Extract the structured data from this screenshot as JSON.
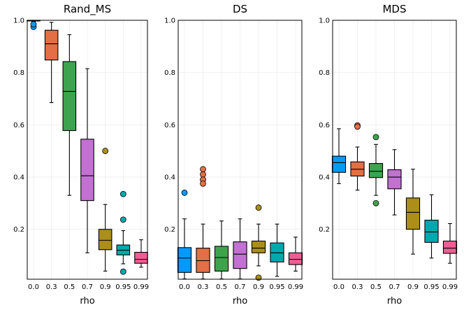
{
  "chart_data": [
    {
      "type": "box",
      "title": "Rand_MS",
      "xlabel": "rho",
      "ylabel": "",
      "ylim": [
        0.0,
        1.0
      ],
      "yticks": [
        "0.2",
        "0.4",
        "0.6",
        "0.8",
        "1.0"
      ],
      "categories": [
        "0.0",
        "0.3",
        "0.5",
        "0.7",
        "0.9",
        "0.95",
        "0.99"
      ],
      "boxes": [
        {
          "category": "0.0",
          "color": "#009af9",
          "whisker_low": 0.995,
          "q1": 0.998,
          "median": 0.999,
          "q3": 1.0,
          "whisker_high": 1.0,
          "outliers": [
            0.975,
            0.985
          ]
        },
        {
          "category": "0.3",
          "color": "#e26f46",
          "whisker_low": 0.685,
          "q1": 0.848,
          "median": 0.91,
          "q3": 0.962,
          "whisker_high": 0.992,
          "outliers": []
        },
        {
          "category": "0.5",
          "color": "#3da44d",
          "whisker_low": 0.33,
          "q1": 0.578,
          "median": 0.728,
          "q3": 0.842,
          "whisker_high": 0.945,
          "outliers": []
        },
        {
          "category": "0.7",
          "color": "#c271d2",
          "whisker_low": 0.11,
          "q1": 0.31,
          "median": 0.405,
          "q3": 0.545,
          "whisker_high": 0.815,
          "outliers": []
        },
        {
          "category": "0.9",
          "color": "#ac8e18",
          "whisker_low": 0.04,
          "q1": 0.122,
          "median": 0.158,
          "q3": 0.2,
          "whisker_high": 0.295,
          "outliers": [
            0.5
          ]
        },
        {
          "category": "0.95",
          "color": "#00a9ad",
          "whisker_low": 0.068,
          "q1": 0.102,
          "median": 0.12,
          "q3": 0.14,
          "whisker_high": 0.195,
          "outliers": [
            0.335,
            0.237,
            0.038
          ]
        },
        {
          "category": "0.99",
          "color": "#ed5e93",
          "whisker_low": 0.055,
          "q1": 0.07,
          "median": 0.085,
          "q3": 0.112,
          "whisker_high": 0.16,
          "outliers": []
        }
      ]
    },
    {
      "type": "box",
      "title": "DS",
      "xlabel": "rho",
      "ylabel": "",
      "ylim": [
        0.0,
        1.0
      ],
      "yticks": [
        "0.2",
        "0.4",
        "0.6",
        "0.8",
        "1.0"
      ],
      "categories": [
        "0.0",
        "0.3",
        "0.5",
        "0.7",
        "0.9",
        "0.95",
        "0.99"
      ],
      "boxes": [
        {
          "category": "0.0",
          "color": "#009af9",
          "whisker_low": 0.01,
          "q1": 0.035,
          "median": 0.09,
          "q3": 0.13,
          "whisker_high": 0.24,
          "outliers": [
            0.34
          ]
        },
        {
          "category": "0.3",
          "color": "#e26f46",
          "whisker_low": 0.01,
          "q1": 0.035,
          "median": 0.08,
          "q3": 0.128,
          "whisker_high": 0.22,
          "outliers": [
            0.43,
            0.41,
            0.39,
            0.375
          ]
        },
        {
          "category": "0.5",
          "color": "#3da44d",
          "whisker_low": 0.01,
          "q1": 0.04,
          "median": 0.092,
          "q3": 0.135,
          "whisker_high": 0.232,
          "outliers": []
        },
        {
          "category": "0.7",
          "color": "#c271d2",
          "whisker_low": 0.01,
          "q1": 0.05,
          "median": 0.105,
          "q3": 0.152,
          "whisker_high": 0.24,
          "outliers": []
        },
        {
          "category": "0.9",
          "color": "#ac8e18",
          "whisker_low": 0.06,
          "q1": 0.11,
          "median": 0.128,
          "q3": 0.155,
          "whisker_high": 0.22,
          "outliers": [
            0.283,
            0.015
          ]
        },
        {
          "category": "0.95",
          "color": "#00a9ad",
          "whisker_low": 0.02,
          "q1": 0.075,
          "median": 0.11,
          "q3": 0.148,
          "whisker_high": 0.22,
          "outliers": []
        },
        {
          "category": "0.99",
          "color": "#ed5e93",
          "whisker_low": 0.04,
          "q1": 0.065,
          "median": 0.085,
          "q3": 0.11,
          "whisker_high": 0.17,
          "outliers": []
        }
      ]
    },
    {
      "type": "box",
      "title": "MDS",
      "xlabel": "rho",
      "ylabel": "",
      "ylim": [
        0.0,
        1.0
      ],
      "yticks": [
        "0.2",
        "0.4",
        "0.6",
        "0.8",
        "1.0"
      ],
      "categories": [
        "0.0",
        "0.3",
        "0.5",
        "0.7",
        "0.9",
        "0.95",
        "0.99"
      ],
      "boxes": [
        {
          "category": "0.0",
          "color": "#009af9",
          "whisker_low": 0.375,
          "q1": 0.418,
          "median": 0.455,
          "q3": 0.48,
          "whisker_high": 0.585,
          "outliers": []
        },
        {
          "category": "0.3",
          "color": "#e26f46",
          "whisker_low": 0.35,
          "q1": 0.404,
          "median": 0.43,
          "q3": 0.458,
          "whisker_high": 0.515,
          "outliers": [
            0.598,
            0.593
          ]
        },
        {
          "category": "0.5",
          "color": "#3da44d",
          "whisker_low": 0.33,
          "q1": 0.398,
          "median": 0.422,
          "q3": 0.452,
          "whisker_high": 0.525,
          "outliers": [
            0.553,
            0.3
          ]
        },
        {
          "category": "0.7",
          "color": "#c271d2",
          "whisker_low": 0.255,
          "q1": 0.355,
          "median": 0.4,
          "q3": 0.428,
          "whisker_high": 0.505,
          "outliers": []
        },
        {
          "category": "0.9",
          "color": "#ac8e18",
          "whisker_low": 0.105,
          "q1": 0.2,
          "median": 0.265,
          "q3": 0.32,
          "whisker_high": 0.43,
          "outliers": []
        },
        {
          "category": "0.95",
          "color": "#00a9ad",
          "whisker_low": 0.09,
          "q1": 0.15,
          "median": 0.19,
          "q3": 0.235,
          "whisker_high": 0.332,
          "outliers": []
        },
        {
          "category": "0.99",
          "color": "#ed5e93",
          "whisker_low": 0.07,
          "q1": 0.108,
          "median": 0.128,
          "q3": 0.155,
          "whisker_high": 0.222,
          "outliers": []
        }
      ]
    }
  ]
}
